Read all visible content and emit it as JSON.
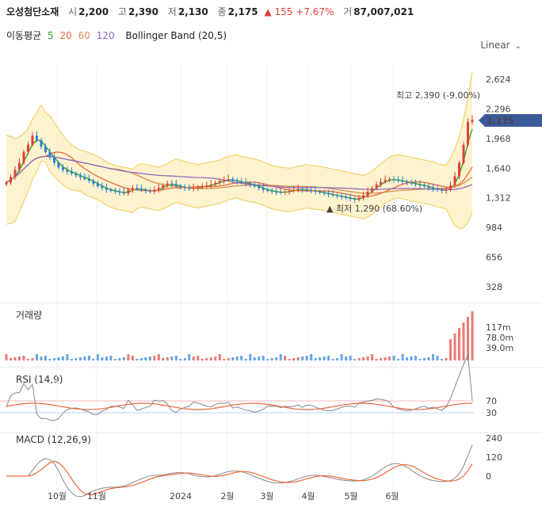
{
  "header": {
    "stock_name": "오성첨단소재",
    "open_label": "시",
    "open": "2,200",
    "high_label": "고",
    "high": "2,390",
    "low_label": "저",
    "low": "2,130",
    "close_label": "종",
    "close": "2,175",
    "change": "▲ 155",
    "change_pct": "+7.67%",
    "volume_label": "거",
    "volume": "87,007,021"
  },
  "indicators": {
    "ma_label": "이동평균",
    "ma_periods": [
      "5",
      "20",
      "60",
      "120"
    ],
    "ma_colors": [
      "#2ca02c",
      "#e8683a",
      "#d98c4a",
      "#8e6bbf"
    ],
    "bb_label": "Bollinger Band (20,5)"
  },
  "scale_selector": "Linear",
  "colors": {
    "up": "#e0413a",
    "down": "#2a7fd4",
    "band": "#fbe9a8",
    "band_line": "#f2d36b",
    "price_tag": "#3c5a9a"
  },
  "chart_data": [
    {
      "type": "candlestick",
      "price_ticks": [
        2624,
        2296,
        1968,
        1640,
        1312,
        984,
        656,
        328
      ],
      "price_tick_labels": [
        "2,624",
        "2,296",
        "1,968",
        "1,640",
        "1,312",
        "984",
        "656",
        "328"
      ],
      "x_labels": [
        "10월",
        "11월",
        "2024",
        "2월",
        "3월",
        "4월",
        "5월",
        "6월"
      ],
      "current_price": "2,175",
      "max_annotation": "최고 2,390 (-9.00%)",
      "min_annotation": "최저 1,290 (68.60%)",
      "close_approx": [
        1480,
        1540,
        1620,
        1700,
        1820,
        1900,
        2000,
        1950,
        1880,
        1820,
        1760,
        1700,
        1650,
        1620,
        1600,
        1580,
        1560,
        1540,
        1520,
        1500,
        1470,
        1440,
        1420,
        1400,
        1390,
        1380,
        1370,
        1360,
        1400,
        1420,
        1410,
        1400,
        1390,
        1380,
        1400,
        1420,
        1450,
        1470,
        1460,
        1440,
        1430,
        1420,
        1410,
        1420,
        1430,
        1440,
        1450,
        1460,
        1480,
        1500,
        1510,
        1520,
        1500,
        1490,
        1480,
        1470,
        1460,
        1440,
        1420,
        1400,
        1390,
        1380,
        1375,
        1370,
        1380,
        1390,
        1400,
        1410,
        1400,
        1395,
        1390,
        1380,
        1370,
        1360,
        1350,
        1340,
        1330,
        1320,
        1310,
        1300,
        1290,
        1310,
        1340,
        1380,
        1420,
        1460,
        1490,
        1510,
        1520,
        1510,
        1500,
        1490,
        1480,
        1470,
        1460,
        1450,
        1440,
        1420,
        1410,
        1400,
        1390,
        1400,
        1450,
        1550,
        1700,
        1900,
        2150,
        2175
      ]
    },
    {
      "type": "bar",
      "title": "거래량",
      "tick_labels": [
        "117m",
        "78.0m",
        "39.0m"
      ]
    },
    {
      "type": "line",
      "title": "RSI (14,9)",
      "tick_labels": [
        "70",
        "30"
      ]
    },
    {
      "type": "line",
      "title": "MACD (12,26,9)",
      "tick_labels": [
        "240",
        "120",
        "0"
      ]
    }
  ]
}
